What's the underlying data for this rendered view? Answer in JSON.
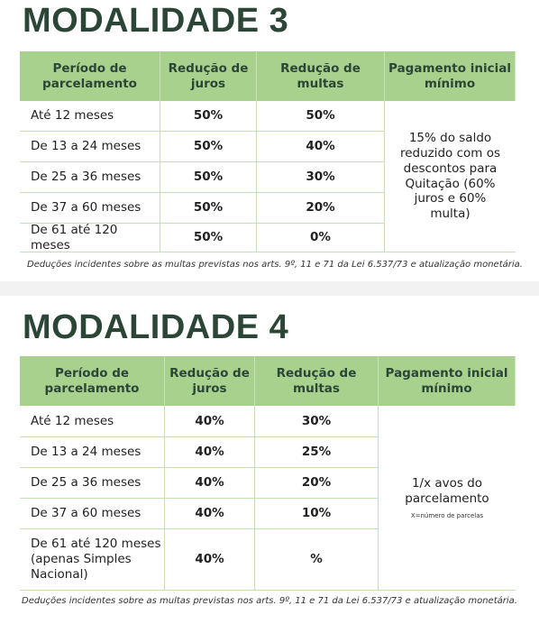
{
  "sections": [
    {
      "title": "MODALIDADE 3",
      "table": {
        "header": [
          "Período de parcelamento",
          "Redução de juros",
          "Redução de multas",
          "Pagamento inicial mínimo"
        ],
        "rows": [
          [
            "Até 12 meses",
            "50%",
            "50%"
          ],
          [
            "De 13 a 24 meses",
            "50%",
            "40%"
          ],
          [
            "De 25 a 36 meses",
            "50%",
            "30%"
          ],
          [
            "De 37 a 60 meses",
            "50%",
            "20%"
          ],
          [
            "De 61 até 120 meses",
            "50%",
            "0%"
          ]
        ],
        "note": {
          "text": "15% do saldo reduzido com os descontos para Quitação (60% juros e 60% multa)"
        }
      },
      "footnote": "Deduções incidentes sobre as multas previstas nos arts. 9º, 11 e 71 da Lei 6.537/73 e atualização monetária."
    },
    {
      "title": "MODALIDADE 4",
      "table": {
        "header": [
          "Período de parcelamento",
          "Redução de juros",
          "Redução de multas",
          "Pagamento inicial mínimo"
        ],
        "rows": [
          [
            "Até 12 meses",
            "40%",
            "30%"
          ],
          [
            "De 13 a 24 meses",
            "40%",
            "25%"
          ],
          [
            "De 25 a 36 meses",
            "40%",
            "20%"
          ],
          [
            "De 37 a 60 meses",
            "40%",
            "10%"
          ],
          [
            "De 61 até 120 meses (apenas Simples Nacional)",
            "40%",
            "%"
          ]
        ],
        "note": {
          "text": "1/x avos do parcelamento",
          "small": "X=número de parcelas"
        }
      },
      "footnote": "Deduções incidentes sobre as multas previstas nos arts. 9º, 11 e 71 da Lei 6.537/73 e atualização monetária."
    }
  ]
}
